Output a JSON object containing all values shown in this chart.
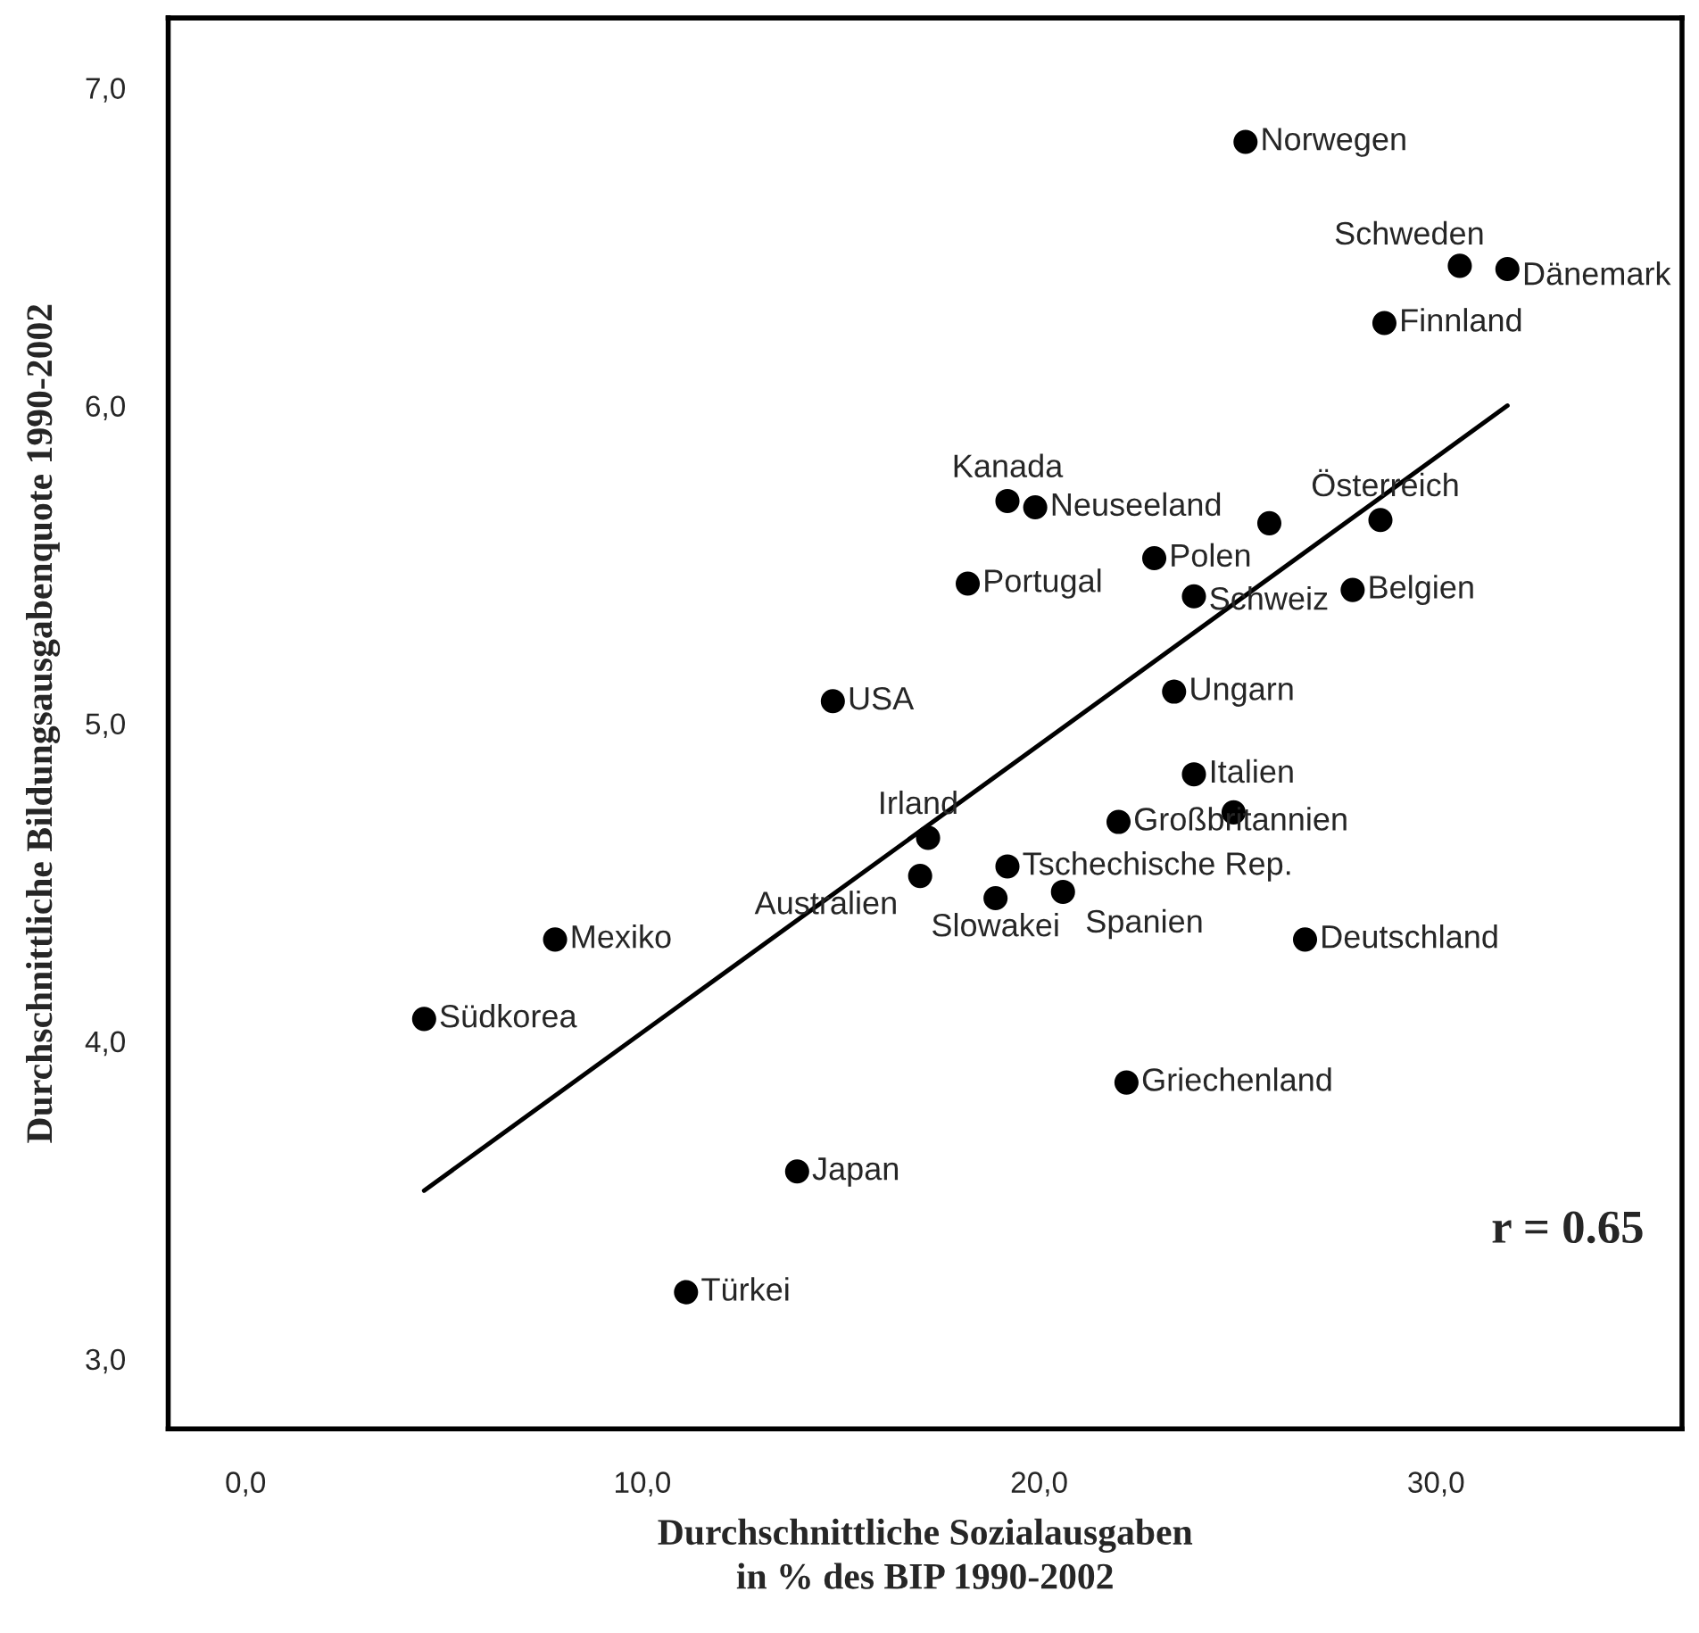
{
  "chart_data": {
    "type": "scatter",
    "xlabel": "Durchschnittliche Sozialausgaben\nin % des BIP 1990-2002",
    "ylabel": "Durchschnittliche Bildungsausgabenquote 1990-2002",
    "xlim": [
      -1.95,
      36.2
    ],
    "ylim": [
      2.78,
      7.22
    ],
    "xticks": [
      {
        "value": 0,
        "label": "0,0"
      },
      {
        "value": 10,
        "label": "10,0"
      },
      {
        "value": 20,
        "label": "20,0"
      },
      {
        "value": 30,
        "label": "30,0"
      }
    ],
    "yticks": [
      {
        "value": 3,
        "label": "3,0"
      },
      {
        "value": 4,
        "label": "4,0"
      },
      {
        "value": 5,
        "label": "5,0"
      },
      {
        "value": 6,
        "label": "6,0"
      },
      {
        "value": 7,
        "label": "7,0"
      }
    ],
    "grid": false,
    "legend": false,
    "marker": "circle",
    "series": [
      {
        "color": "#000000",
        "x": [
          25.2,
          30.6,
          31.8,
          28.7,
          19.2,
          19.9,
          25.8,
          28.6,
          22.9,
          18.2,
          23.9,
          27.9,
          23.4,
          23.9,
          14.8,
          17.2,
          17.0,
          19.2,
          18.9,
          20.6,
          22.0,
          24.9,
          26.7,
          22.2,
          7.8,
          4.5,
          13.9,
          11.1
        ],
        "values": [
          6.83,
          6.44,
          6.43,
          6.26,
          5.7,
          5.68,
          5.63,
          5.64,
          5.52,
          5.44,
          5.4,
          5.42,
          5.1,
          4.84,
          5.07,
          4.64,
          4.52,
          4.55,
          4.45,
          4.47,
          4.69,
          4.72,
          4.32,
          3.87,
          4.32,
          4.07,
          3.59,
          3.21
        ]
      },
      {
        "type": "line",
        "color": "#000000",
        "x": [
          4.5,
          31.8
        ],
        "values": [
          3.53,
          6.0
        ],
        "marker": "none",
        "line_style": "solid"
      }
    ],
    "annotations": [
      {
        "text": "Norwegen",
        "x": 25.2,
        "y": 6.83
      },
      {
        "text": "Schweden",
        "x": 30.6,
        "y": 6.44
      },
      {
        "text": "Dänemark",
        "x": 31.8,
        "y": 6.43
      },
      {
        "text": "Finnland",
        "x": 28.7,
        "y": 6.26
      },
      {
        "text": "Kanada",
        "x": 19.2,
        "y": 5.7
      },
      {
        "text": "Neuseeland",
        "x": 19.9,
        "y": 5.68
      },
      {
        "text": "Österreich",
        "x": 28.6,
        "y": 5.64
      },
      {
        "text": "Polen",
        "x": 22.9,
        "y": 5.52
      },
      {
        "text": "Portugal",
        "x": 18.2,
        "y": 5.44
      },
      {
        "text": "Schweiz",
        "x": 23.9,
        "y": 5.4
      },
      {
        "text": "Belgien",
        "x": 27.9,
        "y": 5.42
      },
      {
        "text": "Ungarn",
        "x": 23.4,
        "y": 5.1
      },
      {
        "text": "Italien",
        "x": 23.9,
        "y": 4.84
      },
      {
        "text": "USA",
        "x": 14.8,
        "y": 5.07
      },
      {
        "text": "Irland",
        "x": 17.2,
        "y": 4.64
      },
      {
        "text": "Australien",
        "x": 17.0,
        "y": 4.52
      },
      {
        "text": "Tschechische Rep.",
        "x": 19.2,
        "y": 4.55
      },
      {
        "text": "Slowakei",
        "x": 18.9,
        "y": 4.45
      },
      {
        "text": "Spanien",
        "x": 20.6,
        "y": 4.47
      },
      {
        "text": "Großbritannien",
        "x": 22.0,
        "y": 4.69
      },
      {
        "text": "Deutschland",
        "x": 26.7,
        "y": 4.32
      },
      {
        "text": "Griechenland",
        "x": 22.2,
        "y": 3.87
      },
      {
        "text": "Mexiko",
        "x": 7.8,
        "y": 4.32
      },
      {
        "text": "Südkorea",
        "x": 4.5,
        "y": 4.07
      },
      {
        "text": "Japan",
        "x": 13.9,
        "y": 3.59
      },
      {
        "text": "Türkei",
        "x": 11.1,
        "y": 3.21
      },
      "r = 0.65"
    ]
  }
}
